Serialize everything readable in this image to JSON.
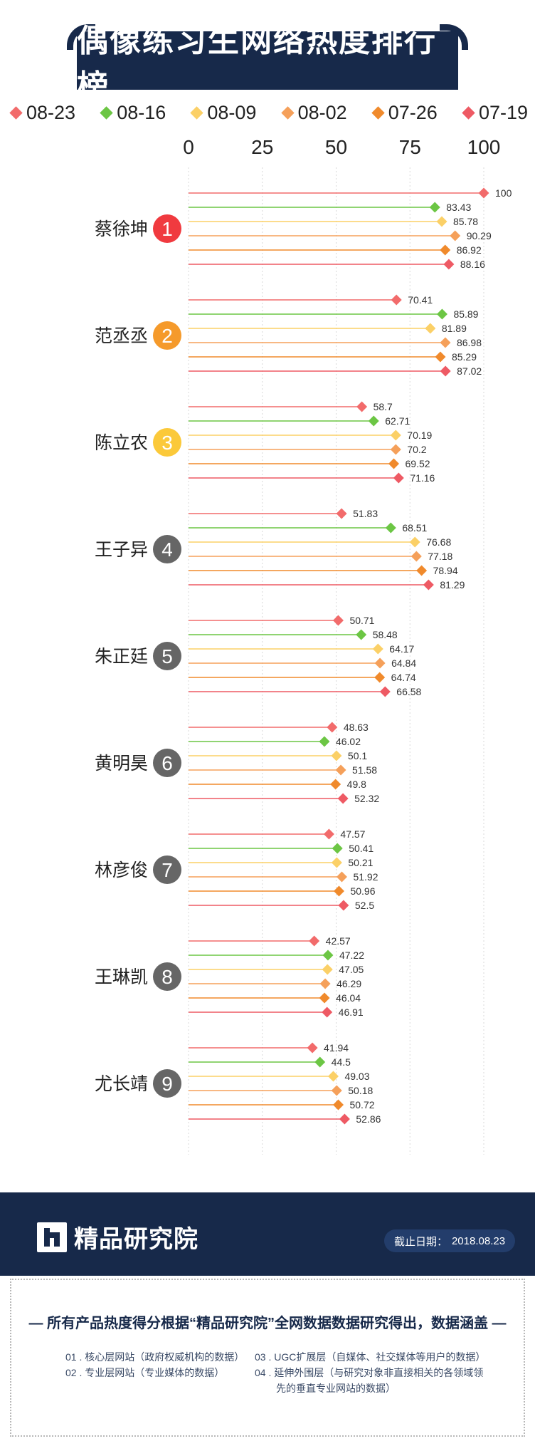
{
  "title": "偶像练习生网络热度排行榜",
  "legend": [
    {
      "label": "08-23",
      "color": "#f26b6b"
    },
    {
      "label": "08-16",
      "color": "#6cc644"
    },
    {
      "label": "08-09",
      "color": "#fbd067"
    },
    {
      "label": "08-02",
      "color": "#f5a05a"
    },
    {
      "label": "07-26",
      "color": "#f08a2c"
    },
    {
      "label": "07-19",
      "color": "#ee5a64"
    }
  ],
  "chart_data": {
    "type": "bar",
    "title": "偶像练习生网络热度排行榜",
    "xlim": [
      0,
      100
    ],
    "x_ticks": [
      "0",
      "25",
      "50",
      "75",
      "100"
    ],
    "grid": true,
    "legend_position": "top",
    "categories": [
      "蔡徐坤",
      "范丞丞",
      "陈立农",
      "王子异",
      "朱正廷",
      "黄明昊",
      "林彦俊",
      "王琳凯",
      "尤长靖"
    ],
    "ranks": [
      "1",
      "2",
      "3",
      "4",
      "5",
      "6",
      "7",
      "8",
      "9"
    ],
    "rank_colors": [
      "#f03a3f",
      "#f59a2b",
      "#fbc93a",
      "#666666",
      "#666666",
      "#666666",
      "#666666",
      "#666666",
      "#666666"
    ],
    "series": [
      {
        "name": "08-23",
        "color": "#f26b6b",
        "values": [
          100,
          70.41,
          58.7,
          51.83,
          50.71,
          48.63,
          47.57,
          42.57,
          41.94
        ],
        "labels": [
          "100",
          "70.41",
          "58.7",
          "51.83",
          "50.71",
          "48.63",
          "47.57",
          "42.57",
          "41.94"
        ]
      },
      {
        "name": "08-16",
        "color": "#6cc644",
        "values": [
          83.43,
          85.89,
          62.71,
          68.51,
          58.48,
          46.02,
          50.41,
          47.22,
          44.5
        ],
        "labels": [
          "83.43",
          "85.89",
          "62.71",
          "68.51",
          "58.48",
          "46.02",
          "50.41",
          "47.22",
          "44.5"
        ]
      },
      {
        "name": "08-09",
        "color": "#fbd067",
        "values": [
          85.78,
          81.89,
          70.19,
          76.68,
          64.17,
          50.1,
          50.21,
          47.05,
          49.03
        ],
        "labels": [
          "85.78",
          "81.89",
          "70.19",
          "76.68",
          "64.17",
          "50.1",
          "50.21",
          "47.05",
          "49.03"
        ]
      },
      {
        "name": "08-02",
        "color": "#f5a05a",
        "values": [
          90.29,
          86.98,
          70.2,
          77.18,
          64.84,
          51.58,
          51.92,
          46.29,
          50.18
        ],
        "labels": [
          "90.29",
          "86.98",
          "70.2",
          "77.18",
          "64.84",
          "51.58",
          "51.92",
          "46.29",
          "50.18"
        ]
      },
      {
        "name": "07-26",
        "color": "#f08a2c",
        "values": [
          86.92,
          85.29,
          69.52,
          78.94,
          64.74,
          49.8,
          50.96,
          46.04,
          50.72
        ],
        "labels": [
          "86.92",
          "85.29",
          "69.52",
          "78.94",
          "64.74",
          "49.8",
          "50.96",
          "46.04",
          "50.72"
        ]
      },
      {
        "name": "07-19",
        "color": "#ee5a64",
        "values": [
          88.16,
          87.02,
          71.16,
          81.29,
          66.58,
          52.32,
          52.5,
          46.91,
          52.86
        ],
        "labels": [
          "88.16",
          "87.02",
          "71.16",
          "81.29",
          "66.58",
          "52.32",
          "52.5",
          "46.91",
          "52.86"
        ]
      }
    ]
  },
  "footer": {
    "brand": "精品研究院",
    "date_label": "截止日期：",
    "date_value": "2018.08.23"
  },
  "notes": {
    "headline": "— 所有产品热度得分根据“精品研究院”全网数据数据研究得出，数据涵盖 —",
    "items": [
      "01 . 核心层网站（政府权威机构的数据）",
      "02 . 专业层网站（专业媒体的数据）",
      "03 . UGC扩展层（自媒体、社交媒体等用户的数据）",
      "04 . 延伸外围层（与研究对象非直接相关的各领域领",
      "先的垂直专业网站的数据）"
    ]
  }
}
